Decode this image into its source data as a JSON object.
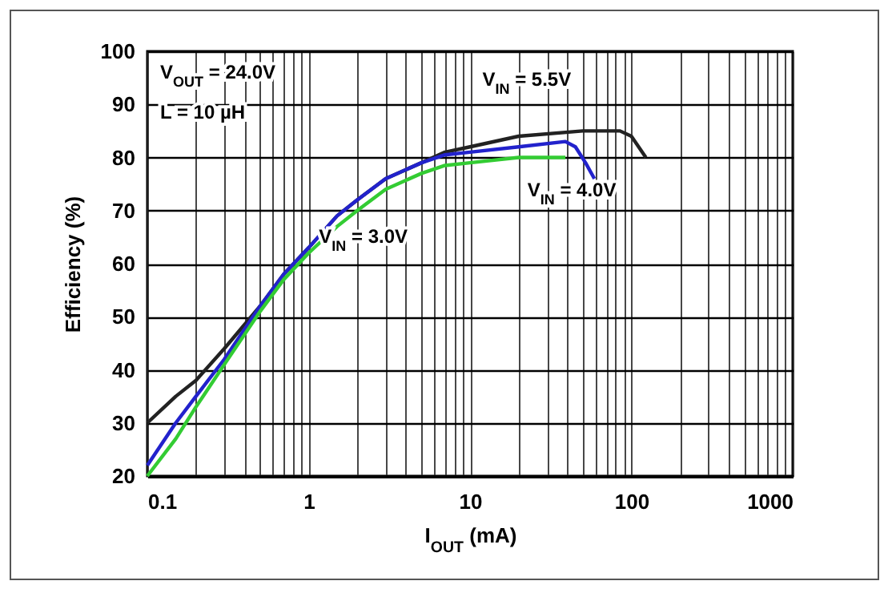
{
  "chart_data": {
    "type": "line",
    "xlabel": "I$_{OUT}$ (mA)",
    "ylabel": "Efficiency (%)",
    "annotations": [
      "V$_{OUT}$ = 24.0V",
      "L = 10 µH"
    ],
    "log": "x",
    "grid": true,
    "legend": false,
    "xlim": [
      0.1,
      1000
    ],
    "ylim": [
      20,
      100
    ],
    "xticks": [
      0.1,
      {
        "value": 0.2,
        "label": null
      },
      {
        "value": 0.3,
        "label": null
      },
      {
        "value": 0.4,
        "label": null
      },
      {
        "value": 0.5,
        "label": null
      },
      {
        "value": 0.6,
        "label": null
      },
      {
        "value": 0.7,
        "label": null
      },
      {
        "value": 0.8,
        "label": null
      },
      {
        "value": 0.9,
        "label": null
      },
      1,
      {
        "value": 2,
        "label": null
      },
      {
        "value": 3,
        "label": null
      },
      {
        "value": 4,
        "label": null
      },
      {
        "value": 5,
        "label": null
      },
      {
        "value": 6,
        "label": null
      },
      {
        "value": 7,
        "label": null
      },
      {
        "value": 8,
        "label": null
      },
      {
        "value": 9,
        "label": null
      },
      10,
      {
        "value": 20,
        "label": null
      },
      {
        "value": 30,
        "label": null
      },
      {
        "value": 40,
        "label": null
      },
      {
        "value": 50,
        "label": null
      },
      {
        "value": 60,
        "label": null
      },
      {
        "value": 70,
        "label": null
      },
      {
        "value": 80,
        "label": null
      },
      {
        "value": 90,
        "label": null
      },
      100,
      {
        "value": 200,
        "label": null
      },
      {
        "value": 300,
        "label": null
      },
      {
        "value": 400,
        "label": null
      },
      {
        "value": 500,
        "label": null
      },
      {
        "value": 600,
        "label": null
      },
      {
        "value": 700,
        "label": null
      },
      {
        "value": 800,
        "label": null
      },
      {
        "value": 900,
        "label": null
      },
      1000
    ],
    "yticks": [
      20,
      30,
      40,
      50,
      60,
      70,
      80,
      90,
      100
    ],
    "series": [
      {
        "name": "V$_{IN}$ = 5.5V",
        "color": "#222222",
        "x": [
          0.1,
          0.15,
          0.2,
          0.3,
          0.5,
          0.7,
          1,
          1.5,
          2,
          3,
          5,
          7,
          10,
          20,
          50,
          85,
          100,
          123
        ],
        "values": [
          30,
          35,
          38,
          44,
          52,
          58,
          63,
          69,
          72,
          76,
          79,
          81,
          82,
          84,
          85,
          85,
          84,
          80
        ]
      },
      {
        "name": "V$_{IN}$ = 4.0V",
        "color": "#2222cc",
        "x": [
          0.1,
          0.15,
          0.2,
          0.3,
          0.5,
          0.7,
          1,
          1.5,
          2,
          3,
          5,
          7,
          10,
          20,
          39,
          45,
          52,
          59
        ],
        "values": [
          22,
          30,
          35,
          42,
          52,
          58,
          63,
          69,
          72,
          76,
          79,
          80.5,
          81,
          82,
          83,
          82,
          79,
          76
        ]
      },
      {
        "name": "V$_{IN}$ = 3.0V",
        "color": "#33cc33",
        "x": [
          0.1,
          0.15,
          0.2,
          0.3,
          0.5,
          0.7,
          1,
          1.5,
          2,
          3,
          5,
          7,
          10,
          20,
          39
        ],
        "values": [
          20,
          27,
          33,
          41,
          51,
          57,
          62,
          67,
          70,
          74,
          77,
          78.5,
          79,
          80,
          80
        ]
      }
    ]
  }
}
